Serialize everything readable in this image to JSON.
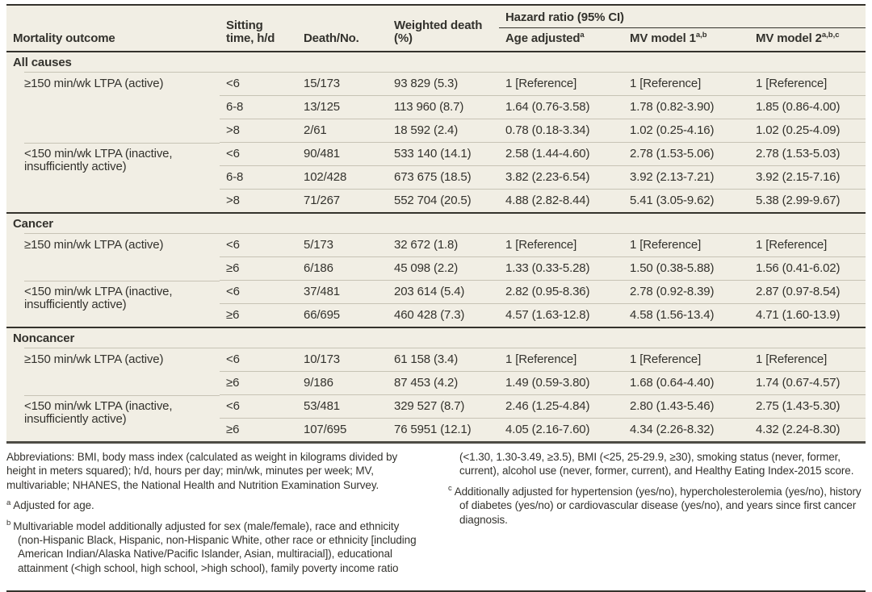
{
  "colors": {
    "table_bg": "#f1eee4",
    "rule_dark": "#34322c",
    "rule_thick": "#4e4c45",
    "rule_light": "#c7c3b5",
    "text": "#33322d"
  },
  "table": {
    "header": {
      "mortality_outcome": "Mortality outcome",
      "sitting_time": "Sitting time, h/d",
      "death_no": "Death/No.",
      "weighted_death": "Weighted death (%)",
      "hazard_ratio_group": "Hazard ratio (95% CI)",
      "age_adjusted": {
        "label": "Age adjusted",
        "sup": "a"
      },
      "mv_model_1": {
        "label": "MV model 1",
        "sup": "a,b"
      },
      "mv_model_2": {
        "label": "MV model 2",
        "sup": "a,b,c"
      }
    },
    "sections": [
      {
        "name": "All causes",
        "groups": [
          {
            "label": "≥150 min/wk LTPA (active)",
            "rows": [
              {
                "sitting": "<6",
                "death_no": "15/173",
                "weighted": "93 829 (5.3)",
                "age_adjusted": "1 [Reference]",
                "mv_model_1": "1 [Reference]",
                "mv_model_2": "1 [Reference]"
              },
              {
                "sitting": "6-8",
                "death_no": "13/125",
                "weighted": "113 960 (8.7)",
                "age_adjusted": "1.64 (0.76-3.58)",
                "mv_model_1": "1.78 (0.82-3.90)",
                "mv_model_2": "1.85 (0.86-4.00)"
              },
              {
                "sitting": ">8",
                "death_no": "2/61",
                "weighted": "18 592 (2.4)",
                "age_adjusted": "0.78 (0.18-3.34)",
                "mv_model_1": "1.02 (0.25-4.16)",
                "mv_model_2": "1.02 (0.25-4.09)"
              }
            ]
          },
          {
            "label": "<150 min/wk LTPA (inactive, insufficiently active)",
            "rows": [
              {
                "sitting": "<6",
                "death_no": "90/481",
                "weighted": "533 140 (14.1)",
                "age_adjusted": "2.58 (1.44-4.60)",
                "mv_model_1": "2.78 (1.53-5.06)",
                "mv_model_2": "2.78 (1.53-5.03)"
              },
              {
                "sitting": "6-8",
                "death_no": "102/428",
                "weighted": "673 675 (18.5)",
                "age_adjusted": "3.82 (2.23-6.54)",
                "mv_model_1": "3.92 (2.13-7.21)",
                "mv_model_2": "3.92 (2.15-7.16)"
              },
              {
                "sitting": ">8",
                "death_no": "71/267",
                "weighted": "552 704 (20.5)",
                "age_adjusted": "4.88 (2.82-8.44)",
                "mv_model_1": "5.41 (3.05-9.62)",
                "mv_model_2": "5.38 (2.99-9.67)"
              }
            ]
          }
        ]
      },
      {
        "name": "Cancer",
        "groups": [
          {
            "label": "≥150 min/wk LTPA (active)",
            "rows": [
              {
                "sitting": "<6",
                "death_no": "5/173",
                "weighted": "32 672 (1.8)",
                "age_adjusted": "1 [Reference]",
                "mv_model_1": "1 [Reference]",
                "mv_model_2": "1 [Reference]"
              },
              {
                "sitting": "≥6",
                "death_no": "6/186",
                "weighted": "45 098 (2.2)",
                "age_adjusted": "1.33 (0.33-5.28)",
                "mv_model_1": "1.50 (0.38-5.88)",
                "mv_model_2": "1.56 (0.41-6.02)"
              }
            ]
          },
          {
            "label": "<150 min/wk LTPA (inactive, insufficiently active)",
            "rows": [
              {
                "sitting": "<6",
                "death_no": "37/481",
                "weighted": "203 614 (5.4)",
                "age_adjusted": "2.82 (0.95-8.36)",
                "mv_model_1": "2.78 (0.92-8.39)",
                "mv_model_2": "2.87 (0.97-8.54)"
              },
              {
                "sitting": "≥6",
                "death_no": "66/695",
                "weighted": "460 428 (7.3)",
                "age_adjusted": "4.57 (1.63-12.8)",
                "mv_model_1": "4.58 (1.56-13.4)",
                "mv_model_2": "4.71 (1.60-13.9)"
              }
            ]
          }
        ]
      },
      {
        "name": "Noncancer",
        "groups": [
          {
            "label": "≥150 min/wk LTPA (active)",
            "rows": [
              {
                "sitting": "<6",
                "death_no": "10/173",
                "weighted": "61 158 (3.4)",
                "age_adjusted": "1 [Reference]",
                "mv_model_1": "1 [Reference]",
                "mv_model_2": "1 [Reference]"
              },
              {
                "sitting": "≥6",
                "death_no": "9/186",
                "weighted": "87 453 (4.2)",
                "age_adjusted": "1.49 (0.59-3.80)",
                "mv_model_1": "1.68 (0.64-4.40)",
                "mv_model_2": "1.74 (0.67-4.57)"
              }
            ]
          },
          {
            "label": "<150 min/wk LTPA (inactive, insufficiently active)",
            "rows": [
              {
                "sitting": "<6",
                "death_no": "53/481",
                "weighted": "329 527 (8.7)",
                "age_adjusted": "2.46 (1.25-4.84)",
                "mv_model_1": "2.80 (1.43-5.46)",
                "mv_model_2": "2.75 (1.43-5.30)"
              },
              {
                "sitting": "≥6",
                "death_no": "107/695",
                "weighted": "76 5951 (12.1)",
                "age_adjusted": "4.05 (2.16-7.60)",
                "mv_model_1": "4.34 (2.26-8.32)",
                "mv_model_2": "4.32 (2.24-8.30)"
              }
            ]
          }
        ]
      }
    ]
  },
  "footnotes": {
    "abbreviations": "Abbreviations: BMI, body mass index (calculated as weight in kilograms divided by height in meters squared); h/d, hours per day; min/wk, minutes per week; MV, multivariable; NHANES, the National Health and Nutrition Examination Survey.",
    "a": {
      "marker": "a",
      "text": "Adjusted for age."
    },
    "b": {
      "marker": "b",
      "text": "Multivariable model additionally adjusted for sex (male/female), race and ethnicity (non-Hispanic Black, Hispanic, non-Hispanic White, other race or ethnicity [including American Indian/Alaska Native/Pacific Islander, Asian, multiracial]), educational attainment (<high school, high school, >high school), family poverty income ratio (<1.30, 1.30-3.49, ≥3.5), BMI (<25, 25-29.9, ≥30), smoking status (never, former, current), alcohol use (never, former, current), and Healthy Eating Index-2015 score."
    },
    "c": {
      "marker": "c",
      "text": "Additionally adjusted for hypertension (yes/no), hypercholesterolemia (yes/no), history of diabetes (yes/no) or cardiovascular disease (yes/no), and years since first cancer diagnosis."
    }
  }
}
